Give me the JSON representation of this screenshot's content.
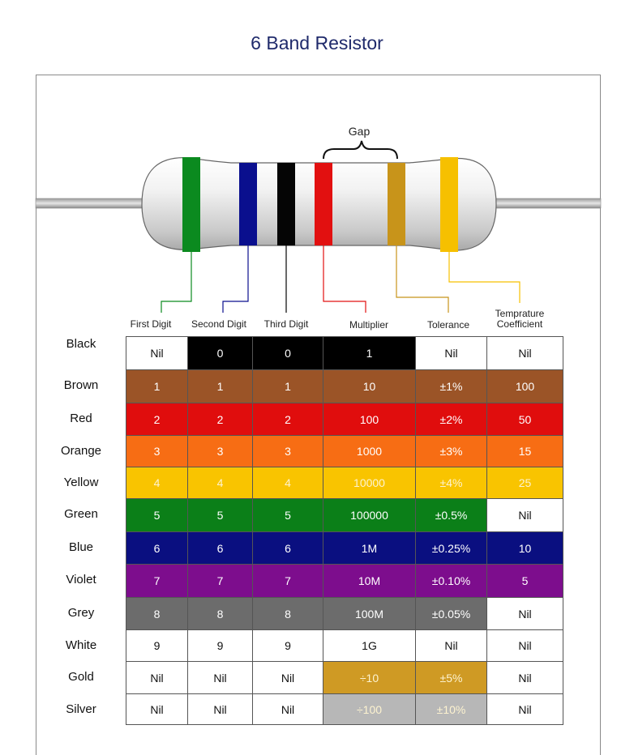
{
  "title": "6 Band Resistor",
  "gap_label": "Gap",
  "band_colors": [
    "#0b8a1f",
    "#0a0f8e",
    "#050505",
    "#e21010",
    "#c8941a",
    "#f6c000"
  ],
  "columns": [
    {
      "label": "First Digit"
    },
    {
      "label": "Second Digit"
    },
    {
      "label": "Third Digit"
    },
    {
      "label": "Multiplier"
    },
    {
      "label": "Tolerance"
    },
    {
      "label": "Temprature Coefficient"
    }
  ],
  "rows": [
    {
      "color": "Black",
      "values": [
        "Nil",
        "0",
        "0",
        "1",
        "Nil",
        "Nil"
      ]
    },
    {
      "color": "Brown",
      "values": [
        "1",
        "1",
        "1",
        "10",
        "±1%",
        "100"
      ]
    },
    {
      "color": "Red",
      "values": [
        "2",
        "2",
        "2",
        "100",
        "±2%",
        "50"
      ]
    },
    {
      "color": "Orange",
      "values": [
        "3",
        "3",
        "3",
        "1000",
        "±3%",
        "15"
      ]
    },
    {
      "color": "Yellow",
      "values": [
        "4",
        "4",
        "4",
        "10000",
        "±4%",
        "25"
      ]
    },
    {
      "color": "Green",
      "values": [
        "5",
        "5",
        "5",
        "100000",
        "±0.5%",
        "Nil"
      ]
    },
    {
      "color": "Blue",
      "values": [
        "6",
        "6",
        "6",
        "1M",
        "±0.25%",
        "10"
      ]
    },
    {
      "color": "Violet",
      "values": [
        "7",
        "7",
        "7",
        "10M",
        "±0.10%",
        "5"
      ]
    },
    {
      "color": "Grey",
      "values": [
        "8",
        "8",
        "8",
        "100M",
        "±0.05%",
        "Nil"
      ]
    },
    {
      "color": "White",
      "values": [
        "9",
        "9",
        "9",
        "1G",
        "Nil",
        "Nil"
      ]
    },
    {
      "color": "Gold",
      "values": [
        "Nil",
        "Nil",
        "Nil",
        "÷10",
        "±5%",
        "Nil"
      ]
    },
    {
      "color": "Silver",
      "values": [
        "Nil",
        "Nil",
        "Nil",
        "÷100",
        "±10%",
        "Nil"
      ]
    }
  ],
  "swatches": {
    "Black": "#000000",
    "Brown": "#9b5427",
    "Red": "#e00d0d",
    "Orange": "#f76d14",
    "Yellow": "#f9c400",
    "Green": "#0b7f18",
    "Blue": "#0a0f80",
    "Violet": "#7d0d8d",
    "Grey": "#6c6c6c",
    "White": "#ffffff",
    "Gold": "#cf9a24",
    "Silver": "#b7b7b7"
  },
  "cell_fill": [
    [
      "white",
      "color",
      "color",
      "color",
      "white",
      "white"
    ],
    [
      "color",
      "color",
      "color",
      "color",
      "color",
      "color"
    ],
    [
      "color",
      "color",
      "color",
      "color",
      "color",
      "color"
    ],
    [
      "color",
      "color",
      "color",
      "color",
      "color",
      "color"
    ],
    [
      "color",
      "color",
      "color",
      "color",
      "color",
      "color"
    ],
    [
      "color",
      "color",
      "color",
      "color",
      "color",
      "white"
    ],
    [
      "color",
      "color",
      "color",
      "color",
      "color",
      "color"
    ],
    [
      "color",
      "color",
      "color",
      "color",
      "color",
      "color"
    ],
    [
      "color",
      "color",
      "color",
      "color",
      "color",
      "white"
    ],
    [
      "white",
      "white",
      "white",
      "white",
      "white",
      "white"
    ],
    [
      "white",
      "white",
      "white",
      "color",
      "color",
      "white"
    ],
    [
      "white",
      "white",
      "white",
      "color",
      "color",
      "white"
    ]
  ]
}
